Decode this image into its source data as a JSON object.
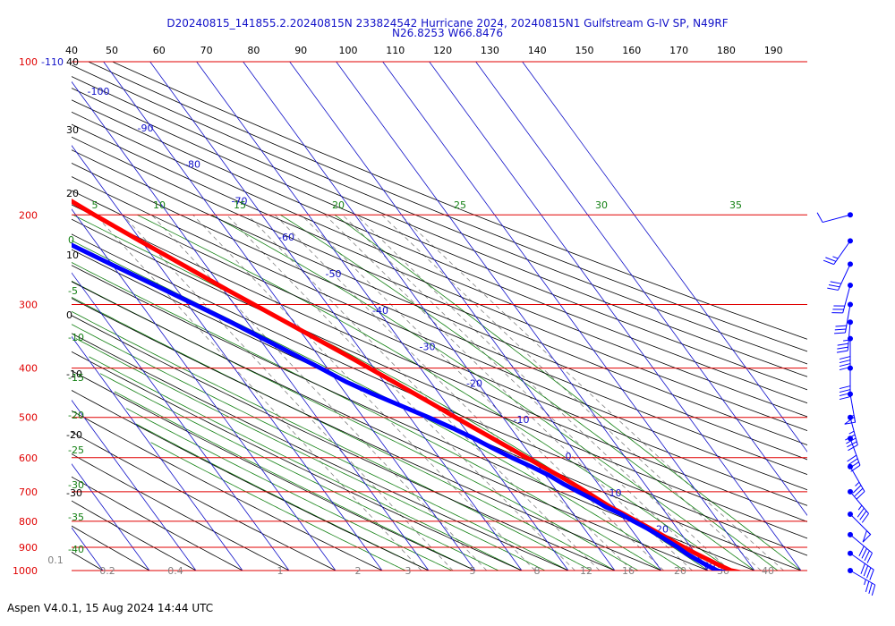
{
  "header": {
    "title_line1": "D20240815_141855.2.20240815N 233824542 Hurricane 2024, 20240815N1 Gulfstream G-IV SP, N49RF",
    "title_line2": "N26.8253 W66.8476"
  },
  "footer": {
    "text": "Aspen V4.0.1, 15 Aug 2024  14:44 UTC"
  },
  "colors": {
    "isobar": "#e00000",
    "isotherm": "#1010c8",
    "dry_adiabat": "#000000",
    "moist_adiabat": "#138013",
    "mixing_ratio": "#808080",
    "temperature": "#ff0000",
    "dewpoint": "#0000ff",
    "wind": "#0000ff"
  },
  "chart_data": {
    "type": "line",
    "chart_kind": "skew-T log-P diagram",
    "y_scale": "log",
    "pressure_ticks": [
      "100",
      "200",
      "300",
      "400",
      "500",
      "600",
      "700",
      "800",
      "900",
      "1000"
    ],
    "top_temp_ticks": [
      "-110",
      "40",
      "50",
      "60",
      "70",
      "80",
      "90",
      "100",
      "110",
      "120",
      "130",
      "140",
      "150",
      "160",
      "170",
      "180",
      "190"
    ],
    "left_theta_labels": [
      "40",
      "30",
      "20",
      "10",
      "0",
      "-10",
      "-20",
      "-30"
    ],
    "isotherm_labels": [
      "-100",
      "-90",
      "-80",
      "-70",
      "-60",
      "-50",
      "-40",
      "-30",
      "-20",
      "-10",
      "0",
      "10",
      "20",
      "30"
    ],
    "moist_labels_top": [
      "5",
      "10",
      "15",
      "20",
      "25",
      "30",
      "35"
    ],
    "moist_labels_left": [
      "0",
      "-5",
      "-10",
      "-15",
      "-20",
      "-25",
      "-30",
      "-35",
      "-40"
    ],
    "mixing_ratio_labels": [
      "0.1",
      "0.2",
      "0.4",
      "1",
      "2",
      "3",
      "5",
      "8",
      "12",
      "16",
      "20",
      "30",
      "40"
    ],
    "series": [
      {
        "name": "temperature",
        "units": "degC",
        "pressure_hpa": [
          1012,
          1000,
          975,
          950,
          925,
          900,
          875,
          850,
          825,
          800,
          775,
          750,
          725,
          700,
          675,
          650,
          625,
          600,
          575,
          550,
          525,
          500,
          475,
          450,
          425,
          400,
          375,
          350,
          325,
          300,
          275,
          250,
          225,
          200,
          185
        ],
        "values": [
          27.5,
          25.0,
          23.2,
          21.6,
          20.0,
          18.5,
          17.0,
          15.6,
          14.1,
          12.5,
          10.8,
          9.0,
          7.6,
          6.2,
          4.6,
          2.8,
          0.8,
          -1.2,
          -3.3,
          -5.5,
          -7.8,
          -10.2,
          -12.6,
          -15.2,
          -18.0,
          -21.0,
          -24.2,
          -27.8,
          -31.6,
          -35.8,
          -40.3,
          -45.0,
          -50.3,
          -56.0,
          -59.5
        ]
      },
      {
        "name": "dewpoint",
        "units": "degC",
        "pressure_hpa": [
          1012,
          1000,
          975,
          950,
          925,
          900,
          875,
          850,
          825,
          800,
          775,
          750,
          725,
          700,
          675,
          650,
          625,
          600,
          575,
          550,
          525,
          500,
          475,
          450,
          425,
          400,
          375,
          350,
          325,
          300,
          275,
          250,
          225
        ],
        "values": [
          24.0,
          22.0,
          20.5,
          19.2,
          18.0,
          17.2,
          16.0,
          14.8,
          13.5,
          11.8,
          10.2,
          8.0,
          6.5,
          4.5,
          2.5,
          0.8,
          -1.6,
          -4.4,
          -7.0,
          -9.5,
          -12.5,
          -16.0,
          -20.0,
          -24.2,
          -28.2,
          -31.5,
          -35.2,
          -39.2,
          -43.5,
          -48.5,
          -54.0,
          -60.2,
          -66.8
        ]
      }
    ],
    "wind_barbs": [
      {
        "pressure_hpa": 200,
        "direction_deg": 255,
        "speed_kt": 10
      },
      {
        "pressure_hpa": 225,
        "direction_deg": 215,
        "speed_kt": 25
      },
      {
        "pressure_hpa": 250,
        "direction_deg": 205,
        "speed_kt": 30
      },
      {
        "pressure_hpa": 275,
        "direction_deg": 195,
        "speed_kt": 30
      },
      {
        "pressure_hpa": 300,
        "direction_deg": 190,
        "speed_kt": 30
      },
      {
        "pressure_hpa": 325,
        "direction_deg": 185,
        "speed_kt": 35
      },
      {
        "pressure_hpa": 350,
        "direction_deg": 180,
        "speed_kt": 40
      },
      {
        "pressure_hpa": 400,
        "direction_deg": 180,
        "speed_kt": 40
      },
      {
        "pressure_hpa": 450,
        "direction_deg": 170,
        "speed_kt": 55
      },
      {
        "pressure_hpa": 500,
        "direction_deg": 165,
        "speed_kt": 45
      },
      {
        "pressure_hpa": 550,
        "direction_deg": 160,
        "speed_kt": 40
      },
      {
        "pressure_hpa": 625,
        "direction_deg": 150,
        "speed_kt": 35
      },
      {
        "pressure_hpa": 700,
        "direction_deg": 140,
        "speed_kt": 35
      },
      {
        "pressure_hpa": 775,
        "direction_deg": 135,
        "speed_kt": 50
      },
      {
        "pressure_hpa": 850,
        "direction_deg": 130,
        "speed_kt": 40
      },
      {
        "pressure_hpa": 925,
        "direction_deg": 125,
        "speed_kt": 40
      },
      {
        "pressure_hpa": 1000,
        "direction_deg": 120,
        "speed_kt": 35
      }
    ]
  }
}
